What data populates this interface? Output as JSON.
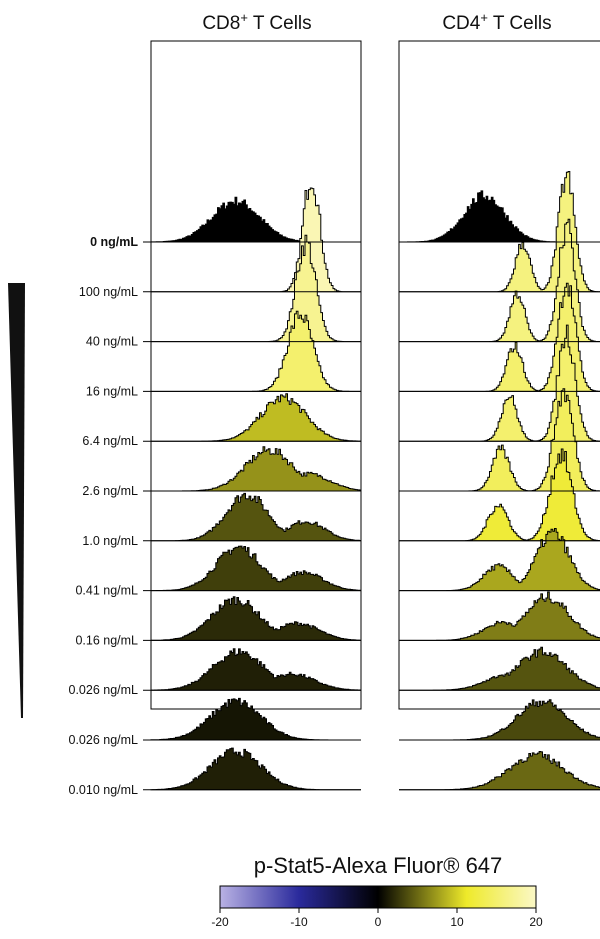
{
  "panels": [
    {
      "title_main": "CD8",
      "title_sup": "+",
      "title_rest": " T Cells"
    },
    {
      "title_main": "CD4",
      "title_sup": "+",
      "title_rest": " T Cells"
    }
  ],
  "dose_labels": [
    {
      "text": "0 ng/mL",
      "bold": true
    },
    {
      "text": "100 ng/mL",
      "bold": false
    },
    {
      "text": "40 ng/mL",
      "bold": false
    },
    {
      "text": "16 ng/mL",
      "bold": false
    },
    {
      "text": "6.4 ng/mL",
      "bold": false
    },
    {
      "text": "2.6 ng/mL",
      "bold": false
    },
    {
      "text": "1.0 ng/mL",
      "bold": false
    },
    {
      "text": "0.41 ng/mL",
      "bold": false
    },
    {
      "text": "0.16 ng/mL",
      "bold": false
    },
    {
      "text": "0.026 ng/mL",
      "bold": false
    },
    {
      "text": "0.026 ng/mL",
      "bold": false
    },
    {
      "text": "0.010 ng/mL",
      "bold": false
    }
  ],
  "colorbar": {
    "title": "p-Stat5-Alexa Fluor® 647",
    "ticks": [
      "-20",
      "-10",
      "0",
      "10",
      "20"
    ],
    "min": -20,
    "max": 20,
    "stops": [
      "#b9b2e4",
      "#2a2a9c",
      "#000000",
      "#eeea2a",
      "#fbf8c6"
    ]
  },
  "chart_data": {
    "type": "area",
    "title": "",
    "xlabel": "",
    "ylabel": "",
    "series_order": [
      "0 ng/mL",
      "100 ng/mL",
      "40 ng/mL",
      "16 ng/mL",
      "6.4 ng/mL",
      "2.6 ng/mL",
      "1.0 ng/mL",
      "0.41 ng/mL",
      "0.16 ng/mL",
      "0.026 ng/mL",
      "0.026 ng/mL",
      "0.010 ng/mL"
    ],
    "panels": [
      {
        "name": "CD8+ T Cells",
        "histograms": [
          {
            "dose": "0 ng/mL",
            "peak": 0.3,
            "width": 0.085,
            "color_value": 0,
            "shoulder": null
          },
          {
            "dose": "100 ng/mL",
            "peak": 0.57,
            "width": 0.03,
            "color_value": 19,
            "shoulder": null
          },
          {
            "dose": "40 ng/mL",
            "peak": 0.55,
            "width": 0.035,
            "color_value": 17,
            "shoulder": null
          },
          {
            "dose": "16 ng/mL",
            "peak": 0.53,
            "width": 0.045,
            "color_value": 15,
            "shoulder": null
          },
          {
            "dose": "6.4 ng/mL",
            "peak": 0.47,
            "width": 0.08,
            "color_value": 9,
            "shoulder": null
          },
          {
            "dose": "2.6 ng/mL",
            "peak": 0.42,
            "width": 0.085,
            "color_value": 7,
            "shoulder": 0.56
          },
          {
            "dose": "1.0 ng/mL",
            "peak": 0.34,
            "width": 0.075,
            "color_value": 4,
            "shoulder": 0.55
          },
          {
            "dose": "0.41 ng/mL",
            "peak": 0.31,
            "width": 0.08,
            "color_value": 3,
            "shoulder": 0.54
          },
          {
            "dose": "0.16 ng/mL",
            "peak": 0.3,
            "width": 0.085,
            "color_value": 2,
            "shoulder": 0.52
          },
          {
            "dose": "0.026 ng/mL",
            "peak": 0.31,
            "width": 0.09,
            "color_value": 1.5,
            "shoulder": 0.5
          },
          {
            "dose": "0.026 ng/mL",
            "peak": 0.3,
            "width": 0.09,
            "color_value": 1,
            "shoulder": null
          },
          {
            "dose": "0.010 ng/mL",
            "peak": 0.3,
            "width": 0.09,
            "color_value": 1.5,
            "shoulder": null
          }
        ]
      },
      {
        "name": "CD4+ T Cells",
        "histograms": [
          {
            "dose": "0 ng/mL",
            "peak": 0.31,
            "width": 0.075,
            "color_value": 0,
            "shoulder": null
          },
          {
            "dose": "100 ng/mL",
            "peak": 0.61,
            "width": 0.03,
            "color_value": 16,
            "shoulder": 0.45
          },
          {
            "dose": "40 ng/mL",
            "peak": 0.61,
            "width": 0.03,
            "color_value": 16,
            "shoulder": 0.43
          },
          {
            "dose": "16 ng/mL",
            "peak": 0.61,
            "width": 0.032,
            "color_value": 15,
            "shoulder": 0.42
          },
          {
            "dose": "6.4 ng/mL",
            "peak": 0.61,
            "width": 0.032,
            "color_value": 15,
            "shoulder": 0.4
          },
          {
            "dose": "2.6 ng/mL",
            "peak": 0.6,
            "width": 0.035,
            "color_value": 14,
            "shoulder": 0.37
          },
          {
            "dose": "1.0 ng/mL",
            "peak": 0.59,
            "width": 0.04,
            "color_value": 12,
            "shoulder": 0.36
          },
          {
            "dose": "0.41 ng/mL",
            "peak": 0.56,
            "width": 0.06,
            "color_value": 8,
            "shoulder": 0.36
          },
          {
            "dose": "0.16 ng/mL",
            "peak": 0.54,
            "width": 0.08,
            "color_value": 6,
            "shoulder": 0.38
          },
          {
            "dose": "0.026 ng/mL",
            "peak": 0.52,
            "width": 0.09,
            "color_value": 4,
            "shoulder": 0.4
          },
          {
            "dose": "0.026 ng/mL",
            "peak": 0.52,
            "width": 0.09,
            "color_value": 3.5,
            "shoulder": null
          },
          {
            "dose": "0.010 ng/mL",
            "peak": 0.5,
            "width": 0.1,
            "color_value": 5,
            "shoulder": null
          }
        ]
      }
    ],
    "colorbar": {
      "min": -20,
      "max": 20,
      "ticks": [
        -20,
        -10,
        0,
        10,
        20
      ]
    }
  }
}
